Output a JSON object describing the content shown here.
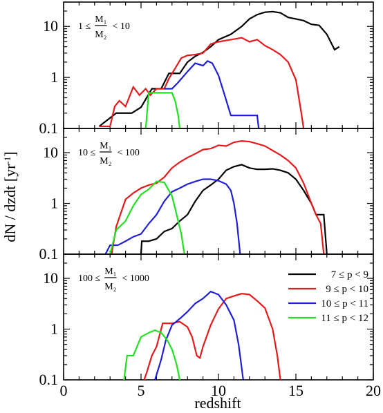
{
  "chart_data": {
    "type": "line",
    "xlabel": "redshift",
    "ylabel": "dN / dzdt  [yr",
    "ylabel_sup": "-1",
    "ylabel_close": "]",
    "xlim": [
      0,
      20
    ],
    "ylim": [
      0.1,
      30
    ],
    "yscale": "log",
    "x_ticks": [
      0,
      5,
      10,
      15,
      20
    ],
    "x_tick_labels": [
      "0",
      "5",
      "10",
      "15",
      "20"
    ],
    "y_ticks": [
      0.1,
      1,
      10
    ],
    "y_tick_labels": [
      "0.1",
      "1",
      "10"
    ],
    "legend": {
      "placement": "bottom-right of lowest panel",
      "entries": [
        {
          "label": "7 ≤ p < 9",
          "color": "#000000"
        },
        {
          "label": "9 ≤ p < 10",
          "color": "#e41a1c"
        },
        {
          "label": "10 ≤ p < 11",
          "color": "#1f1fd6"
        },
        {
          "label": "11 ≤ p < 12",
          "color": "#22e022"
        }
      ]
    },
    "panels": [
      {
        "label_left": "1 ≤",
        "label_num": "M₁",
        "label_den": "M₂",
        "label_right": "< 10",
        "series": [
          {
            "color": "#000000",
            "points": [
              [
                2.3,
                0.11
              ],
              [
                3.4,
                0.2
              ],
              [
                4.4,
                0.2
              ],
              [
                5.0,
                0.26
              ],
              [
                5.7,
                0.6
              ],
              [
                6.3,
                0.6
              ],
              [
                6.8,
                1.2
              ],
              [
                7.5,
                1.2
              ],
              [
                8.0,
                2.0
              ],
              [
                8.5,
                2.6
              ],
              [
                9.0,
                3.1
              ],
              [
                9.5,
                4.0
              ],
              [
                10.0,
                5.5
              ],
              [
                10.8,
                7.0
              ],
              [
                11.5,
                10.0
              ],
              [
                12.0,
                14.0
              ],
              [
                12.5,
                17.0
              ],
              [
                13.0,
                19.0
              ],
              [
                13.5,
                19.5
              ],
              [
                14.0,
                18.5
              ],
              [
                14.5,
                15.0
              ],
              [
                15.0,
                14.0
              ],
              [
                15.5,
                13.0
              ],
              [
                16.0,
                11.0
              ],
              [
                16.5,
                10.5
              ],
              [
                17.0,
                7.0
              ],
              [
                17.5,
                3.5
              ],
              [
                17.8,
                4.0
              ]
            ]
          },
          {
            "color": "#e41a1c",
            "points": [
              [
                2.3,
                0.11
              ],
              [
                3.0,
                0.11
              ],
              [
                3.3,
                0.27
              ],
              [
                3.6,
                0.35
              ],
              [
                4.0,
                0.27
              ],
              [
                4.5,
                0.65
              ],
              [
                4.9,
                0.45
              ],
              [
                5.3,
                0.6
              ],
              [
                5.6,
                0.45
              ],
              [
                6.0,
                0.6
              ],
              [
                6.5,
                0.6
              ],
              [
                6.8,
                0.95
              ],
              [
                7.2,
                1.5
              ],
              [
                7.6,
                2.4
              ],
              [
                8.0,
                2.7
              ],
              [
                8.5,
                2.8
              ],
              [
                9.0,
                3.0
              ],
              [
                9.5,
                4.5
              ],
              [
                10.0,
                5.0
              ],
              [
                10.8,
                5.5
              ],
              [
                11.5,
                6.0
              ],
              [
                12.0,
                5.0
              ],
              [
                12.5,
                5.5
              ],
              [
                13.0,
                4.2
              ],
              [
                13.5,
                3.5
              ],
              [
                14.0,
                2.8
              ],
              [
                14.5,
                2.0
              ],
              [
                15.0,
                0.9
              ],
              [
                15.3,
                0.25
              ],
              [
                15.5,
                0.1
              ]
            ]
          },
          {
            "color": "#1f1fd6",
            "points": [
              [
                6.5,
                0.6
              ],
              [
                7.0,
                0.6
              ],
              [
                7.4,
                0.8
              ],
              [
                8.0,
                1.3
              ],
              [
                8.5,
                1.9
              ],
              [
                9.0,
                1.7
              ],
              [
                9.3,
                2.1
              ],
              [
                9.6,
                1.9
              ],
              [
                10.0,
                1.1
              ],
              [
                10.4,
                0.45
              ],
              [
                10.8,
                0.18
              ],
              [
                11.3,
                0.18
              ],
              [
                12.5,
                0.18
              ],
              [
                12.6,
                0.1
              ]
            ]
          },
          {
            "color": "#22e022",
            "points": [
              [
                5.3,
                0.1
              ],
              [
                5.5,
                0.5
              ],
              [
                6.0,
                0.5
              ],
              [
                6.5,
                0.5
              ],
              [
                7.0,
                0.5
              ],
              [
                7.2,
                0.35
              ],
              [
                7.4,
                0.18
              ],
              [
                7.5,
                0.1
              ]
            ]
          }
        ]
      },
      {
        "label_left": "10 ≤",
        "label_num": "M₁",
        "label_den": "M₂",
        "label_right": "< 100",
        "series": [
          {
            "color": "#000000",
            "points": [
              [
                5.0,
                0.1
              ],
              [
                5.05,
                0.18
              ],
              [
                5.5,
                0.18
              ],
              [
                6.0,
                0.2
              ],
              [
                6.5,
                0.28
              ],
              [
                7.0,
                0.32
              ],
              [
                7.5,
                0.45
              ],
              [
                8.0,
                0.6
              ],
              [
                8.5,
                1.1
              ],
              [
                9.0,
                1.8
              ],
              [
                9.5,
                2.3
              ],
              [
                10.0,
                3.0
              ],
              [
                10.5,
                4.5
              ],
              [
                11.0,
                5.3
              ],
              [
                11.5,
                5.8
              ],
              [
                12.0,
                5.0
              ],
              [
                12.5,
                4.7
              ],
              [
                13.0,
                4.7
              ],
              [
                13.5,
                4.8
              ],
              [
                14.0,
                4.5
              ],
              [
                14.5,
                4.0
              ],
              [
                15.0,
                3.0
              ],
              [
                15.5,
                1.8
              ],
              [
                16.0,
                1.0
              ],
              [
                16.3,
                0.6
              ],
              [
                16.8,
                0.6
              ],
              [
                17.0,
                0.1
              ]
            ]
          },
          {
            "color": "#e41a1c",
            "points": [
              [
                3.1,
                0.1
              ],
              [
                3.4,
                0.35
              ],
              [
                4.0,
                1.2
              ],
              [
                4.5,
                1.6
              ],
              [
                5.0,
                2.0
              ],
              [
                5.5,
                2.3
              ],
              [
                6.0,
                2.5
              ],
              [
                6.5,
                3.3
              ],
              [
                7.0,
                5.0
              ],
              [
                7.5,
                6.5
              ],
              [
                8.0,
                8.0
              ],
              [
                8.5,
                9.5
              ],
              [
                9.0,
                11.5
              ],
              [
                9.5,
                12.0
              ],
              [
                10.0,
                14.0
              ],
              [
                10.5,
                13.5
              ],
              [
                11.0,
                16.0
              ],
              [
                11.5,
                17.0
              ],
              [
                12.0,
                16.5
              ],
              [
                12.5,
                15.0
              ],
              [
                13.0,
                13.5
              ],
              [
                13.5,
                11.0
              ],
              [
                14.0,
                9.0
              ],
              [
                14.5,
                7.0
              ],
              [
                15.0,
                5.0
              ],
              [
                15.5,
                2.5
              ],
              [
                16.0,
                1.0
              ],
              [
                16.3,
                0.6
              ],
              [
                16.6,
                0.4
              ],
              [
                16.8,
                0.1
              ]
            ]
          },
          {
            "color": "#1f1fd6",
            "points": [
              [
                2.7,
                0.1
              ],
              [
                3.0,
                0.15
              ],
              [
                3.5,
                0.15
              ],
              [
                4.0,
                0.18
              ],
              [
                4.5,
                0.22
              ],
              [
                5.0,
                0.25
              ],
              [
                5.5,
                0.4
              ],
              [
                6.0,
                0.6
              ],
              [
                6.5,
                1.1
              ],
              [
                7.0,
                1.7
              ],
              [
                7.5,
                2.0
              ],
              [
                8.0,
                2.4
              ],
              [
                8.5,
                2.7
              ],
              [
                9.0,
                3.0
              ],
              [
                9.5,
                3.0
              ],
              [
                10.0,
                2.8
              ],
              [
                10.5,
                2.4
              ],
              [
                10.8,
                1.8
              ],
              [
                11.0,
                1.0
              ],
              [
                11.2,
                0.4
              ],
              [
                11.4,
                0.1
              ]
            ]
          },
          {
            "color": "#22e022",
            "points": [
              [
                3.0,
                0.1
              ],
              [
                3.4,
                0.3
              ],
              [
                4.0,
                0.45
              ],
              [
                4.5,
                0.9
              ],
              [
                5.0,
                1.5
              ],
              [
                5.5,
                1.9
              ],
              [
                6.0,
                2.7
              ],
              [
                6.5,
                2.6
              ],
              [
                7.0,
                1.4
              ],
              [
                7.3,
                0.6
              ],
              [
                7.6,
                0.25
              ],
              [
                7.8,
                0.1
              ]
            ]
          }
        ]
      },
      {
        "label_left": "100 ≤",
        "label_num": "M₁",
        "label_den": "M₂",
        "label_right": "< 1000",
        "series": [
          {
            "color": "#e41a1c",
            "points": [
              [
                5.2,
                0.1
              ],
              [
                5.4,
                0.15
              ],
              [
                5.7,
                0.3
              ],
              [
                6.0,
                0.45
              ],
              [
                6.4,
                1.3
              ],
              [
                7.0,
                1.3
              ],
              [
                7.5,
                1.4
              ],
              [
                8.0,
                1.1
              ],
              [
                8.3,
                0.7
              ],
              [
                8.6,
                0.3
              ],
              [
                8.8,
                0.27
              ],
              [
                9.0,
                0.45
              ],
              [
                9.5,
                1.2
              ],
              [
                10.0,
                2.5
              ],
              [
                10.5,
                4.0
              ],
              [
                11.0,
                4.5
              ],
              [
                11.5,
                5.0
              ],
              [
                12.0,
                4.8
              ],
              [
                12.5,
                3.6
              ],
              [
                13.0,
                2.6
              ],
              [
                13.5,
                1.0
              ],
              [
                13.8,
                0.3
              ],
              [
                14.0,
                0.1
              ]
            ]
          },
          {
            "color": "#1f1fd6",
            "points": [
              [
                5.9,
                0.1
              ],
              [
                6.3,
                0.25
              ],
              [
                6.6,
                0.6
              ],
              [
                7.0,
                1.2
              ],
              [
                7.5,
                1.6
              ],
              [
                8.0,
                2.2
              ],
              [
                8.5,
                3.2
              ],
              [
                9.0,
                4.0
              ],
              [
                9.5,
                5.5
              ],
              [
                10.0,
                4.8
              ],
              [
                10.5,
                3.0
              ],
              [
                11.0,
                1.5
              ],
              [
                11.3,
                0.5
              ],
              [
                11.6,
                0.1
              ]
            ]
          },
          {
            "color": "#22e022",
            "points": [
              [
                3.9,
                0.1
              ],
              [
                4.1,
                0.3
              ],
              [
                4.5,
                0.3
              ],
              [
                5.0,
                0.7
              ],
              [
                5.5,
                0.85
              ],
              [
                5.9,
                0.95
              ],
              [
                6.3,
                0.85
              ],
              [
                6.7,
                0.6
              ],
              [
                7.0,
                0.4
              ],
              [
                7.3,
                0.2
              ],
              [
                7.5,
                0.1
              ]
            ]
          }
        ]
      }
    ]
  }
}
